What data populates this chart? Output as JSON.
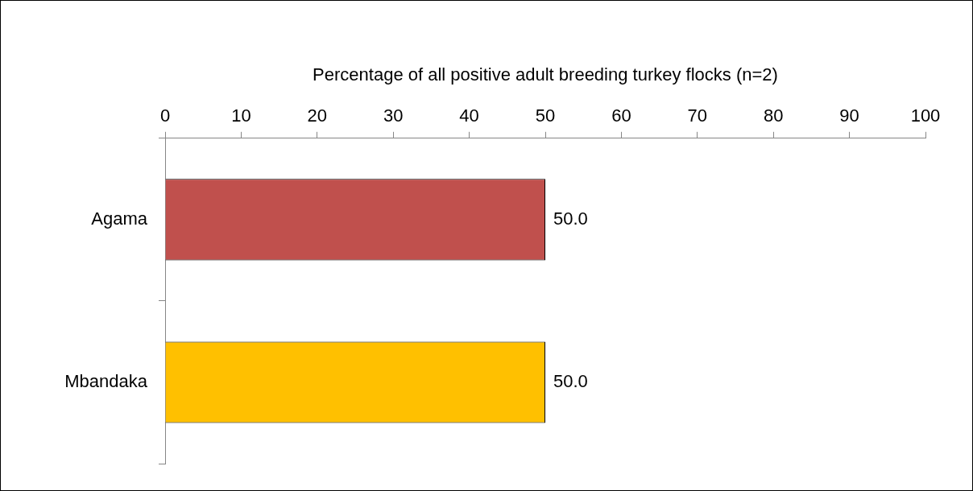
{
  "chart_data": {
    "type": "bar",
    "orientation": "horizontal",
    "xlabel": "Percentage of all positive adult breeding turkey flocks (n=2)",
    "categories": [
      "Agama",
      "Mbandaka"
    ],
    "values": [
      50.0,
      50.0
    ],
    "colors": [
      "#c0504d",
      "#ffc000"
    ],
    "value_labels": [
      "50.0",
      "50.0"
    ],
    "xlim": [
      0,
      100
    ],
    "xticks": [
      0,
      10,
      20,
      30,
      40,
      50,
      60,
      70,
      80,
      90,
      100
    ],
    "legend": false
  }
}
